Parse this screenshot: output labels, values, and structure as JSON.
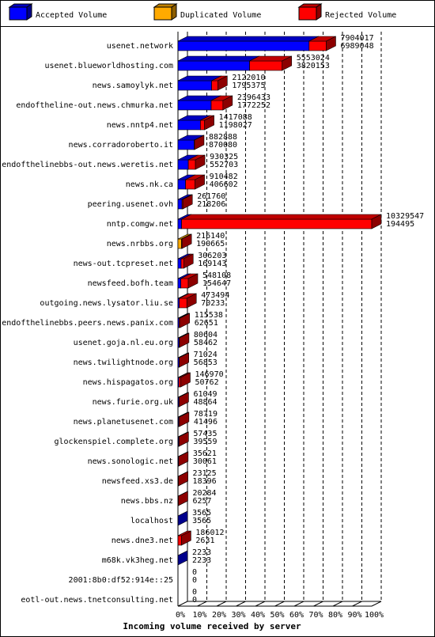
{
  "chart_data": {
    "type": "bar3d",
    "x_label": "Incoming volume received by server",
    "legend": [
      {
        "name": "Accepted Volume",
        "color": "#0000ff"
      },
      {
        "name": "Duplicated Volume",
        "color": "#ffaa00"
      },
      {
        "name": "Rejected Volume",
        "color": "#ff0000"
      }
    ],
    "categories": [
      "usenet.network",
      "usenet.blueworldhosting.com",
      "news.samoylyk.net",
      "endoftheline-out.news.chmurka.net",
      "news.nntp4.net",
      "news.corradoroberto.it",
      "endofthelinebbs-out.news.weretis.net",
      "news.nk.ca",
      "peering.usenet.ovh",
      "nntp.comgw.net",
      "news.nrbbs.org",
      "news-out.tcpreset.net",
      "newsfeed.bofh.team",
      "outgoing.news.lysator.liu.se",
      "endofthelinebbs.peers.news.panix.com",
      "usenet.goja.nl.eu.org",
      "news.twilightnode.org",
      "news.hispagatos.org",
      "news.furie.org.uk",
      "news.planetusenet.com",
      "glockenspiel.complete.org",
      "news.sonologic.net",
      "newsfeed.xs3.de",
      "news.bbs.nz",
      "localhost",
      "news.dne3.net",
      "m68k.vk3heg.net",
      "2001:8b0:df52:914e::25",
      "eotl-out.news.tnetconsulting.net"
    ],
    "totals": [
      7904017,
      5553024,
      2122010,
      2396433,
      1417088,
      882888,
      930325,
      910482,
      261760,
      10329547,
      216140,
      306203,
      548108,
      473494,
      115538,
      80604,
      71024,
      146970,
      61049,
      78719,
      57435,
      35621,
      23125,
      20284,
      3565,
      186012,
      2233,
      0,
      0
    ],
    "accepted": [
      6989048,
      3820153,
      1795375,
      1772252,
      1198027,
      870080,
      552703,
      406602,
      218206,
      194495,
      190665,
      169143,
      154647,
      70233,
      62651,
      58462,
      56853,
      50762,
      48864,
      41496,
      39559,
      30061,
      18396,
      6257,
      3565,
      2631,
      2233,
      0,
      0
    ],
    "accepted_colors": [
      "#0000ff",
      "#0000ff",
      "#0000ff",
      "#0000ff",
      "#0000ff",
      "#0000ff",
      "#0000ff",
      "#0000ff",
      "#0000ff",
      "#0000ff",
      "#ffaa00",
      "#0000ff",
      "#0000ff",
      "#0000ff",
      "#0000ff",
      "#0000ff",
      "#0000ff",
      "#0000ff",
      "#0000ff",
      "#0000ff",
      "#0000ff",
      "#0000ff",
      "#ffaa00",
      "#0000ff",
      "#0000ff",
      "#0000ff",
      "#0000ff",
      "#0000ff",
      "#0000ff"
    ],
    "rejected_color": "#ff0000",
    "xlim": [
      0,
      10329547
    ],
    "xticks": [
      {
        "value": 0,
        "label": "0%"
      },
      {
        "value": 1032954.7,
        "label": "10%"
      },
      {
        "value": 2065909.4,
        "label": "20%"
      },
      {
        "value": 3098864.1,
        "label": "30%"
      },
      {
        "value": 4131818.8,
        "label": "40%"
      },
      {
        "value": 5164773.5,
        "label": "50%"
      },
      {
        "value": 6197728.2,
        "label": "60%"
      },
      {
        "value": 7230682.9,
        "label": "70%"
      },
      {
        "value": 8263637.6,
        "label": "80%"
      },
      {
        "value": 9296592.3,
        "label": "90%"
      },
      {
        "value": 10329547,
        "label": "100%"
      }
    ],
    "grid": true
  }
}
